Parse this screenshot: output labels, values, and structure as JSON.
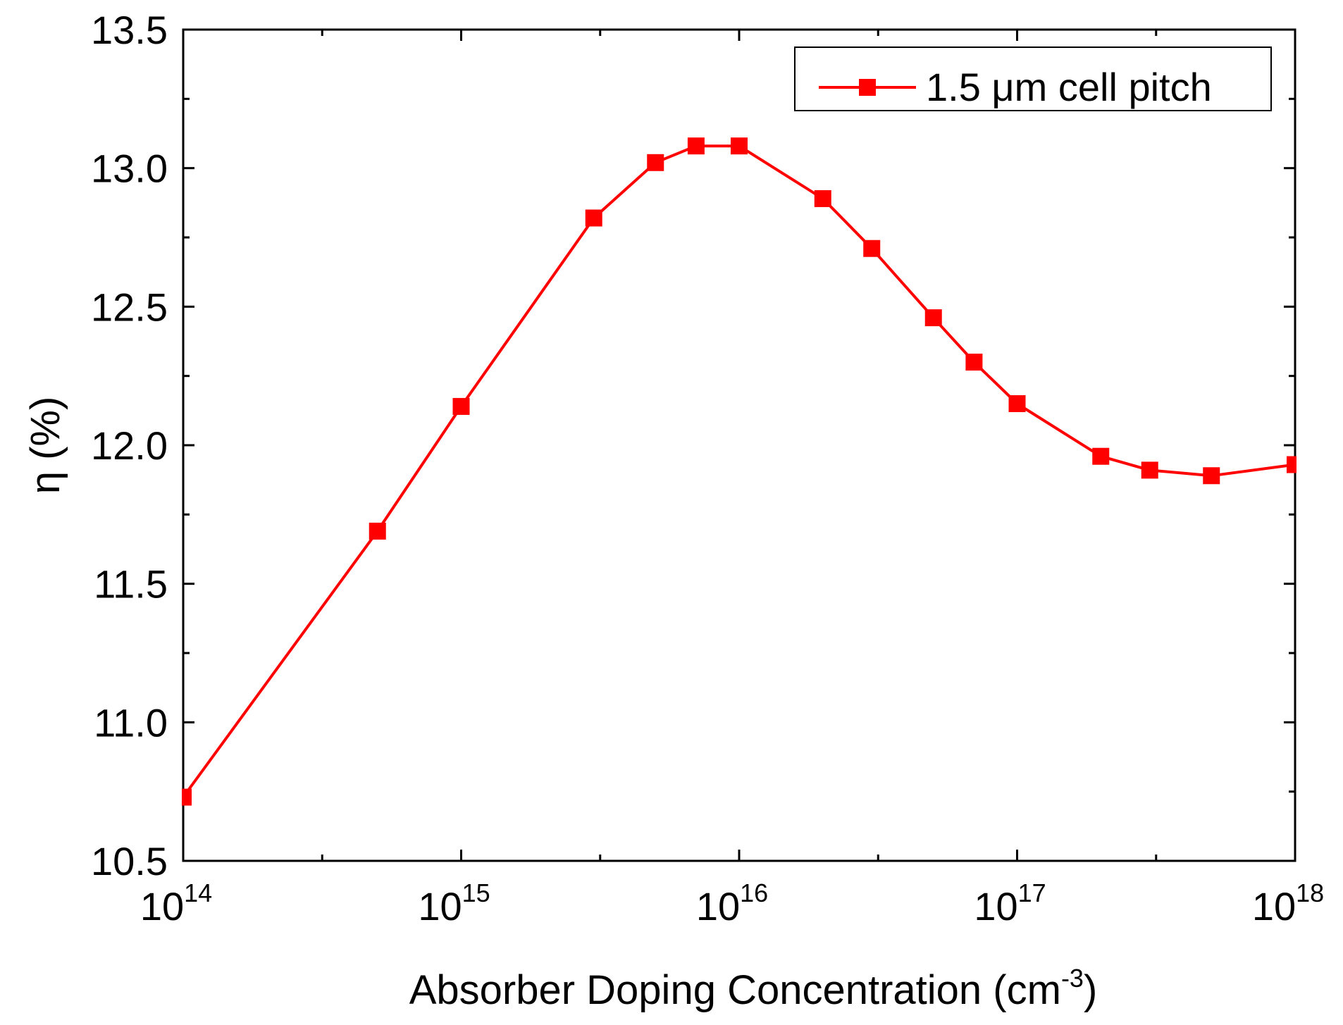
{
  "chart_data": {
    "type": "line",
    "title": "",
    "xlabel": "Absorber Doping Concentration (cm",
    "xlabel_sup": "-3",
    "xlabel_suffix": ")",
    "ylabel": "η (%)",
    "xscale": "log",
    "xlim": [
      100000000000000.0,
      1e+18
    ],
    "ylim": [
      10.5,
      13.5
    ],
    "xticks": [
      {
        "value": 100000000000000.0,
        "base": "10",
        "exp": "14"
      },
      {
        "value": 1000000000000000.0,
        "base": "10",
        "exp": "15"
      },
      {
        "value": 1e+16,
        "base": "10",
        "exp": "16"
      },
      {
        "value": 1e+17,
        "base": "10",
        "exp": "17"
      },
      {
        "value": 1e+18,
        "base": "10",
        "exp": "18"
      }
    ],
    "yticks": [
      {
        "value": 10.5,
        "label": "10.5"
      },
      {
        "value": 11.0,
        "label": "11.0"
      },
      {
        "value": 11.5,
        "label": "11.5"
      },
      {
        "value": 12.0,
        "label": "12.0"
      },
      {
        "value": 12.5,
        "label": "12.5"
      },
      {
        "value": 13.0,
        "label": "13.0"
      },
      {
        "value": 13.5,
        "label": "13.5"
      }
    ],
    "grid": false,
    "legend_position": "top-right",
    "series": [
      {
        "name": "1.5 μm cell pitch",
        "color": "#ff0000",
        "marker": "square",
        "x": [
          100000000000000.0,
          500000000000000.0,
          1000000000000000.0,
          3000000000000000.0,
          5000000000000000.0,
          7000000000000000.0,
          1e+16,
          2e+16,
          3e+16,
          5e+16,
          7e+16,
          1e+17,
          2e+17,
          3e+17,
          5e+17,
          1e+18
        ],
        "y": [
          10.73,
          11.69,
          12.14,
          12.82,
          13.02,
          13.08,
          13.08,
          12.89,
          12.71,
          12.46,
          12.3,
          12.15,
          11.96,
          11.91,
          11.89,
          11.93
        ]
      }
    ]
  }
}
